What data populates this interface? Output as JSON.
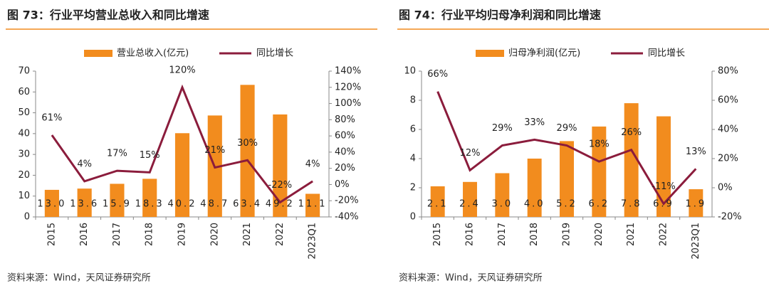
{
  "chart_data": [
    {
      "type": "combo",
      "title": "图 73：行业平均营业总收入和同比增速",
      "source": "资料来源：Wind，天风证券研究所",
      "categories": [
        "2015",
        "2016",
        "2017",
        "2018",
        "2019",
        "2020",
        "2021",
        "2022",
        "2023Q1"
      ],
      "series": [
        {
          "type": "bar",
          "name": "营业总收入(亿元)",
          "color": "#f28c1e",
          "values": [
            13.0,
            13.6,
            15.9,
            18.3,
            40.2,
            48.7,
            63.4,
            49.2,
            11.1
          ],
          "value_labels": [
            "13.0",
            "13.6",
            "15.9",
            "18.3",
            "40.2",
            "48.7",
            "63.4",
            "49.2",
            "11.1"
          ]
        },
        {
          "type": "line",
          "name": "同比增长",
          "color": "#8b1c3c",
          "axis": "y2",
          "values": [
            61,
            4,
            17,
            15,
            120,
            21,
            30,
            -22,
            4
          ],
          "value_labels": [
            "61%",
            "4%",
            "17%",
            "15%",
            "120%",
            "21%",
            "30%",
            "-22%",
            "4%"
          ]
        }
      ],
      "ylim": [
        0,
        70
      ],
      "yticks": [
        0,
        10,
        20,
        30,
        40,
        50,
        60,
        70
      ],
      "y2lim": [
        -40,
        140
      ],
      "y2ticks": [
        {
          "value": -40,
          "label": "-40%"
        },
        {
          "value": -20,
          "label": "-20%"
        },
        {
          "value": 0,
          "label": "0%"
        },
        {
          "value": 20,
          "label": "20%"
        },
        {
          "value": 40,
          "label": "40%"
        },
        {
          "value": 60,
          "label": "60%"
        },
        {
          "value": 80,
          "label": "80%"
        },
        {
          "value": 100,
          "label": "100%"
        },
        {
          "value": 120,
          "label": "120%"
        },
        {
          "value": 140,
          "label": "140%"
        }
      ]
    },
    {
      "type": "combo",
      "title": "图 74：行业平均归母净利润和同比增速",
      "source": "资料来源：Wind，天风证券研究所",
      "categories": [
        "2015",
        "2016",
        "2017",
        "2018",
        "2019",
        "2020",
        "2021",
        "2022",
        "2023Q1"
      ],
      "series": [
        {
          "type": "bar",
          "name": "归母净利润(亿元)",
          "color": "#f28c1e",
          "values": [
            2.1,
            2.4,
            3.0,
            4.0,
            5.2,
            6.2,
            7.8,
            6.9,
            1.9
          ],
          "value_labels": [
            "2.1",
            "2.4",
            "3.0",
            "4.0",
            "5.2",
            "6.2",
            "7.8",
            "6.9",
            "1.9"
          ]
        },
        {
          "type": "line",
          "name": "同比增长",
          "color": "#8b1c3c",
          "axis": "y2",
          "values": [
            66,
            12,
            29,
            33,
            29,
            18,
            26,
            -11,
            13
          ],
          "value_labels": [
            "66%",
            "12%",
            "29%",
            "33%",
            "29%",
            "18%",
            "26%",
            "-11%",
            "13%"
          ]
        }
      ],
      "ylim": [
        0,
        10
      ],
      "yticks": [
        0,
        2,
        4,
        6,
        8,
        10
      ],
      "y2lim": [
        -20,
        80
      ],
      "y2ticks": [
        {
          "value": -20,
          "label": "-20%"
        },
        {
          "value": 0,
          "label": "0%"
        },
        {
          "value": 20,
          "label": "20%"
        },
        {
          "value": 40,
          "label": "40%"
        },
        {
          "value": 60,
          "label": "60%"
        },
        {
          "value": 80,
          "label": "80%"
        }
      ]
    }
  ]
}
